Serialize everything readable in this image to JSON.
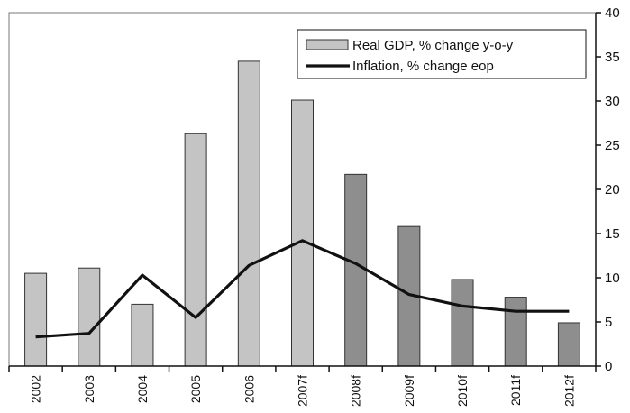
{
  "chart_data": {
    "type": "bar",
    "categories": [
      "2002",
      "2003",
      "2004",
      "2005",
      "2006",
      "2007f",
      "2008f",
      "2009f",
      "2010f",
      "2011f",
      "2012f"
    ],
    "series": [
      {
        "name": "Real GDP, % change y-o-y",
        "type": "bar",
        "values": [
          10.5,
          11.1,
          7.0,
          26.3,
          34.5,
          30.1,
          21.7,
          15.8,
          9.8,
          7.8,
          4.9
        ],
        "forecast_from_index": 6
      },
      {
        "name": "Inflation, % change eop",
        "type": "line",
        "values": [
          3.3,
          3.7,
          10.3,
          5.5,
          11.4,
          14.2,
          11.6,
          8.1,
          6.8,
          6.2,
          6.2
        ]
      }
    ],
    "ylim": [
      0,
      40
    ],
    "yticks": [
      0,
      5,
      10,
      15,
      20,
      25,
      30,
      35,
      40
    ],
    "y_axis_side": "right",
    "legend_position": "top-right",
    "grid": false,
    "colors": {
      "bar_actual": "#c4c4c4",
      "bar_forecast": "#8e8e8e",
      "bar_edge": "#333333",
      "line": "#111111",
      "axis": "#111111"
    }
  }
}
